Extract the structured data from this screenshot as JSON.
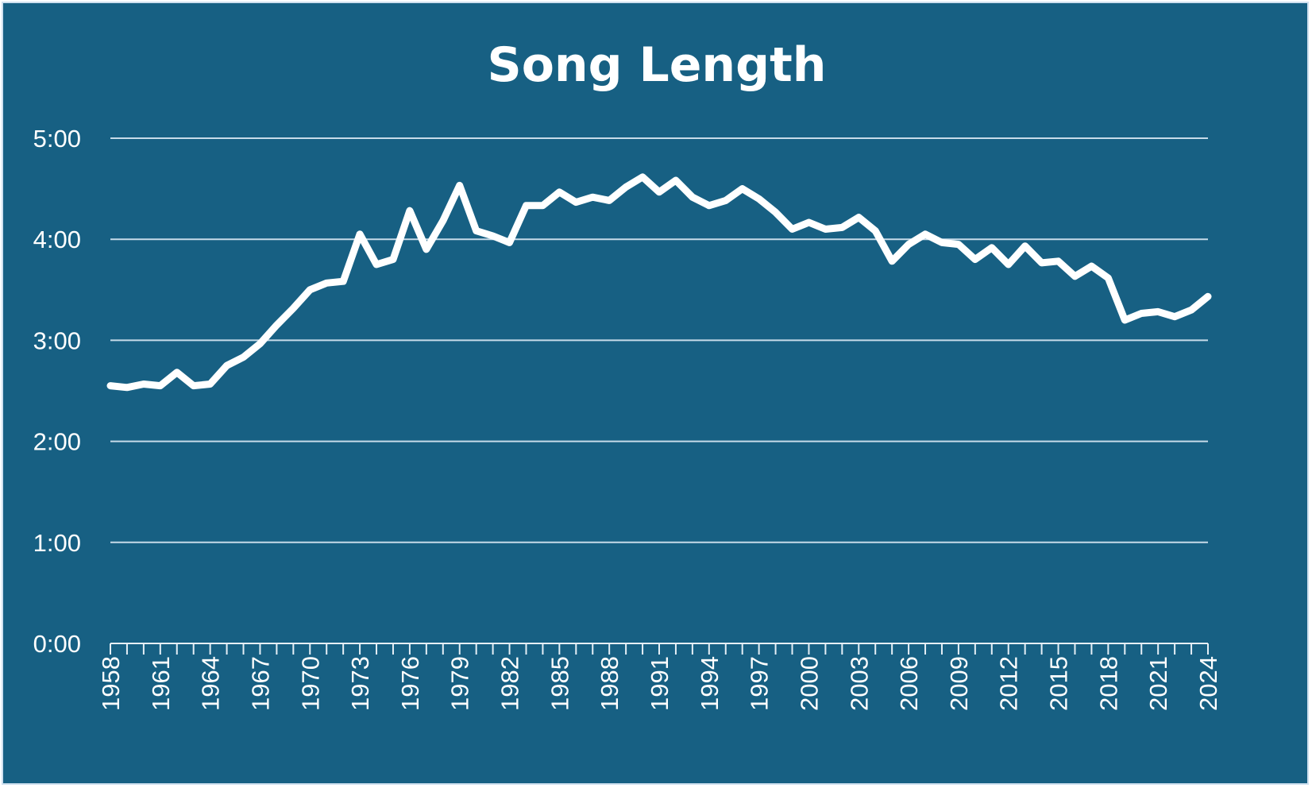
{
  "chart_data": {
    "type": "line",
    "title": "Song Length",
    "xlabel": "",
    "ylabel": "",
    "ylim": [
      0,
      300
    ],
    "yticks": [
      {
        "value": 0,
        "label": "0:00"
      },
      {
        "value": 60,
        "label": "1:00"
      },
      {
        "value": 120,
        "label": "2:00"
      },
      {
        "value": 180,
        "label": "3:00"
      },
      {
        "value": 240,
        "label": "4:00"
      },
      {
        "value": 300,
        "label": "5:00"
      }
    ],
    "xlim": [
      1958,
      2024
    ],
    "xtick_labels": [
      "1958",
      "1961",
      "1964",
      "1967",
      "1970",
      "1973",
      "1976",
      "1979",
      "1982",
      "1985",
      "1988",
      "1991",
      "1994",
      "1997",
      "2000",
      "2003",
      "2006",
      "2009",
      "2012",
      "2015",
      "2018",
      "2021",
      "2024"
    ],
    "grid": true,
    "background_color": "#176083",
    "line_color": "#ffffff",
    "series": [
      {
        "x": [
          1958,
          1959,
          1960,
          1961,
          1962,
          1963,
          1964,
          1965,
          1966,
          1967,
          1968,
          1969,
          1970,
          1971,
          1972,
          1973,
          1974,
          1975,
          1976,
          1977,
          1978,
          1979,
          1980,
          1981,
          1982,
          1983,
          1984,
          1985,
          1986,
          1987,
          1988,
          1989,
          1990,
          1991,
          1992,
          1993,
          1994,
          1995,
          1996,
          1997,
          1998,
          1999,
          2000,
          2001,
          2002,
          2003,
          2004,
          2005,
          2006,
          2007,
          2008,
          2009,
          2010,
          2011,
          2012,
          2013,
          2014,
          2015,
          2016,
          2017,
          2018,
          2019,
          2020,
          2021,
          2022,
          2023,
          2024
        ],
        "values": [
          153,
          152,
          154,
          153,
          161,
          153,
          154,
          165,
          170,
          178,
          189,
          199,
          210,
          214,
          215,
          243,
          225,
          228,
          257,
          234,
          251,
          272,
          245,
          242,
          238,
          260,
          260,
          268,
          262,
          265,
          263,
          271,
          277,
          268,
          275,
          265,
          260,
          263,
          270,
          264,
          256,
          246,
          250,
          246,
          247,
          253,
          245,
          227,
          237,
          243,
          238,
          237,
          228,
          235,
          225,
          236,
          226,
          227,
          218,
          224,
          217,
          192,
          196,
          197,
          194,
          198,
          206
        ]
      }
    ]
  }
}
